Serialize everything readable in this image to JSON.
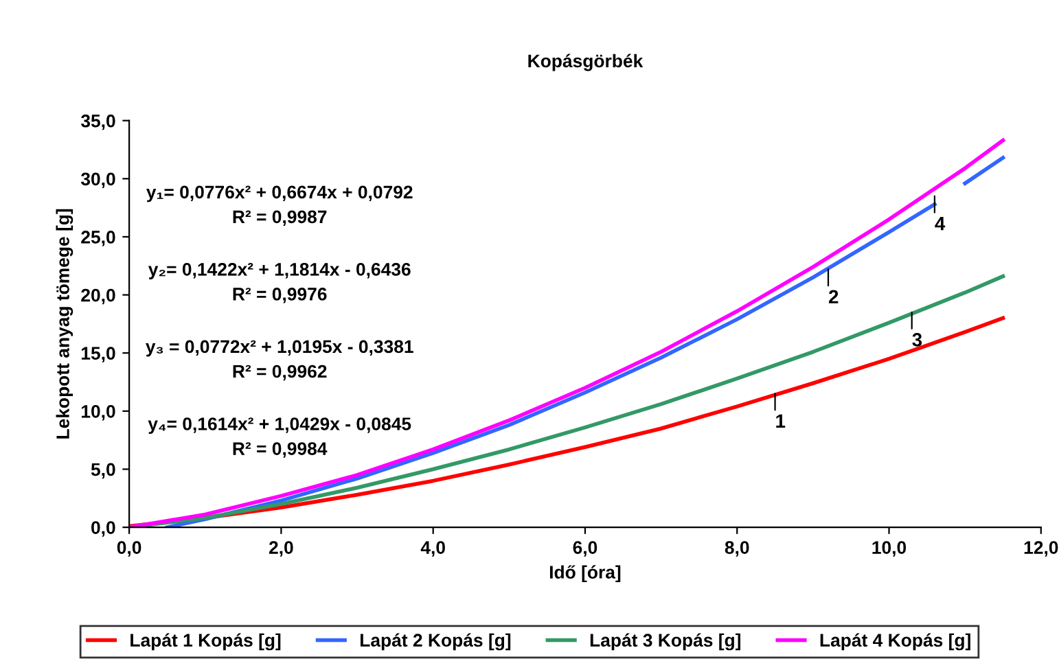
{
  "chart_data": {
    "type": "line",
    "title": "Kopásgörbék",
    "xlabel": "Idő [óra]",
    "ylabel": "Lekopott anyag tömege [g]",
    "series": [
      {
        "name": "Lapát 1 Kopás [g]",
        "color": "#ff0000",
        "x": [
          0,
          1,
          2,
          3,
          4,
          5,
          6,
          7,
          8,
          9,
          10,
          11,
          11.5
        ],
        "values": [
          0.1,
          0.8,
          1.7,
          2.8,
          4.0,
          5.4,
          6.9,
          8.5,
          10.4,
          12.4,
          14.5,
          16.8,
          18.0
        ]
      },
      {
        "name": "Lapát 2 Kopás [g]",
        "color": "#3366ff",
        "x": [
          0.5,
          1,
          2,
          3,
          4,
          5,
          6,
          7,
          8,
          9,
          10,
          10.6,
          10.95,
          11,
          11.5
        ],
        "values": [
          0,
          0.7,
          2.3,
          4.2,
          6.4,
          8.8,
          11.6,
          14.6,
          17.9,
          21.5,
          25.4,
          27.8,
          null,
          29.6,
          31.8
        ]
      },
      {
        "name": "Lapát 3 Kopás [g]",
        "color": "#339966",
        "x": [
          0,
          1,
          2,
          3,
          4,
          5,
          6,
          7,
          8,
          9,
          10,
          11,
          11.5
        ],
        "values": [
          0,
          0.8,
          2.0,
          3.4,
          5.0,
          6.7,
          8.6,
          10.6,
          12.8,
          15.1,
          17.6,
          20.2,
          21.6
        ]
      },
      {
        "name": "Lapát 4 Kopás [g]",
        "color": "#ff00ff",
        "x": [
          0,
          1,
          2,
          3,
          4,
          5,
          6,
          7,
          8,
          9,
          10,
          11,
          11.5
        ],
        "values": [
          0,
          1.1,
          2.7,
          4.5,
          6.7,
          9.2,
          12.0,
          15.1,
          18.6,
          22.4,
          26.5,
          30.9,
          33.3
        ]
      }
    ],
    "xlim": [
      0,
      12
    ],
    "ylim": [
      0,
      35
    ],
    "xticks": [
      {
        "value": 0,
        "label": "0,0"
      },
      {
        "value": 2,
        "label": "2,0"
      },
      {
        "value": 4,
        "label": "4,0"
      },
      {
        "value": 6,
        "label": "6,0"
      },
      {
        "value": 8,
        "label": "8,0"
      },
      {
        "value": 10,
        "label": "10,0"
      },
      {
        "value": 12,
        "label": "12,0"
      }
    ],
    "yticks": [
      {
        "value": 0,
        "label": "0,0"
      },
      {
        "value": 5,
        "label": "5,0"
      },
      {
        "value": 10,
        "label": "10,0"
      },
      {
        "value": 15,
        "label": "15,0"
      },
      {
        "value": 20,
        "label": "20,0"
      },
      {
        "value": 25,
        "label": "25,0"
      },
      {
        "value": 30,
        "label": "30,0"
      },
      {
        "value": 35,
        "label": "35,0"
      }
    ],
    "annotations": [
      "y₁= 0,0776x² + 0,6674x + 0,0792\nR² = 0,9987",
      "y₂= 0,1422x² + 1,1814x - 0,6436\nR² = 0,9976",
      "y₃ = 0,0772x² + 1,0195x - 0,3381\nR² = 0,9962",
      "y₄= 0,1614x² + 1,0429x - 0,0845\nR² = 0,9984",
      {
        "text": "1",
        "x": 8.5,
        "y": 11.5
      },
      {
        "text": "2",
        "x": 9.2,
        "y": 22.2
      },
      {
        "text": "3",
        "x": 10.3,
        "y": 18.5
      },
      {
        "text": "4",
        "x": 10.6,
        "y": 28.5
      }
    ],
    "grid": false,
    "legend": "bottom",
    "marker": "none",
    "line_style": "solid"
  }
}
